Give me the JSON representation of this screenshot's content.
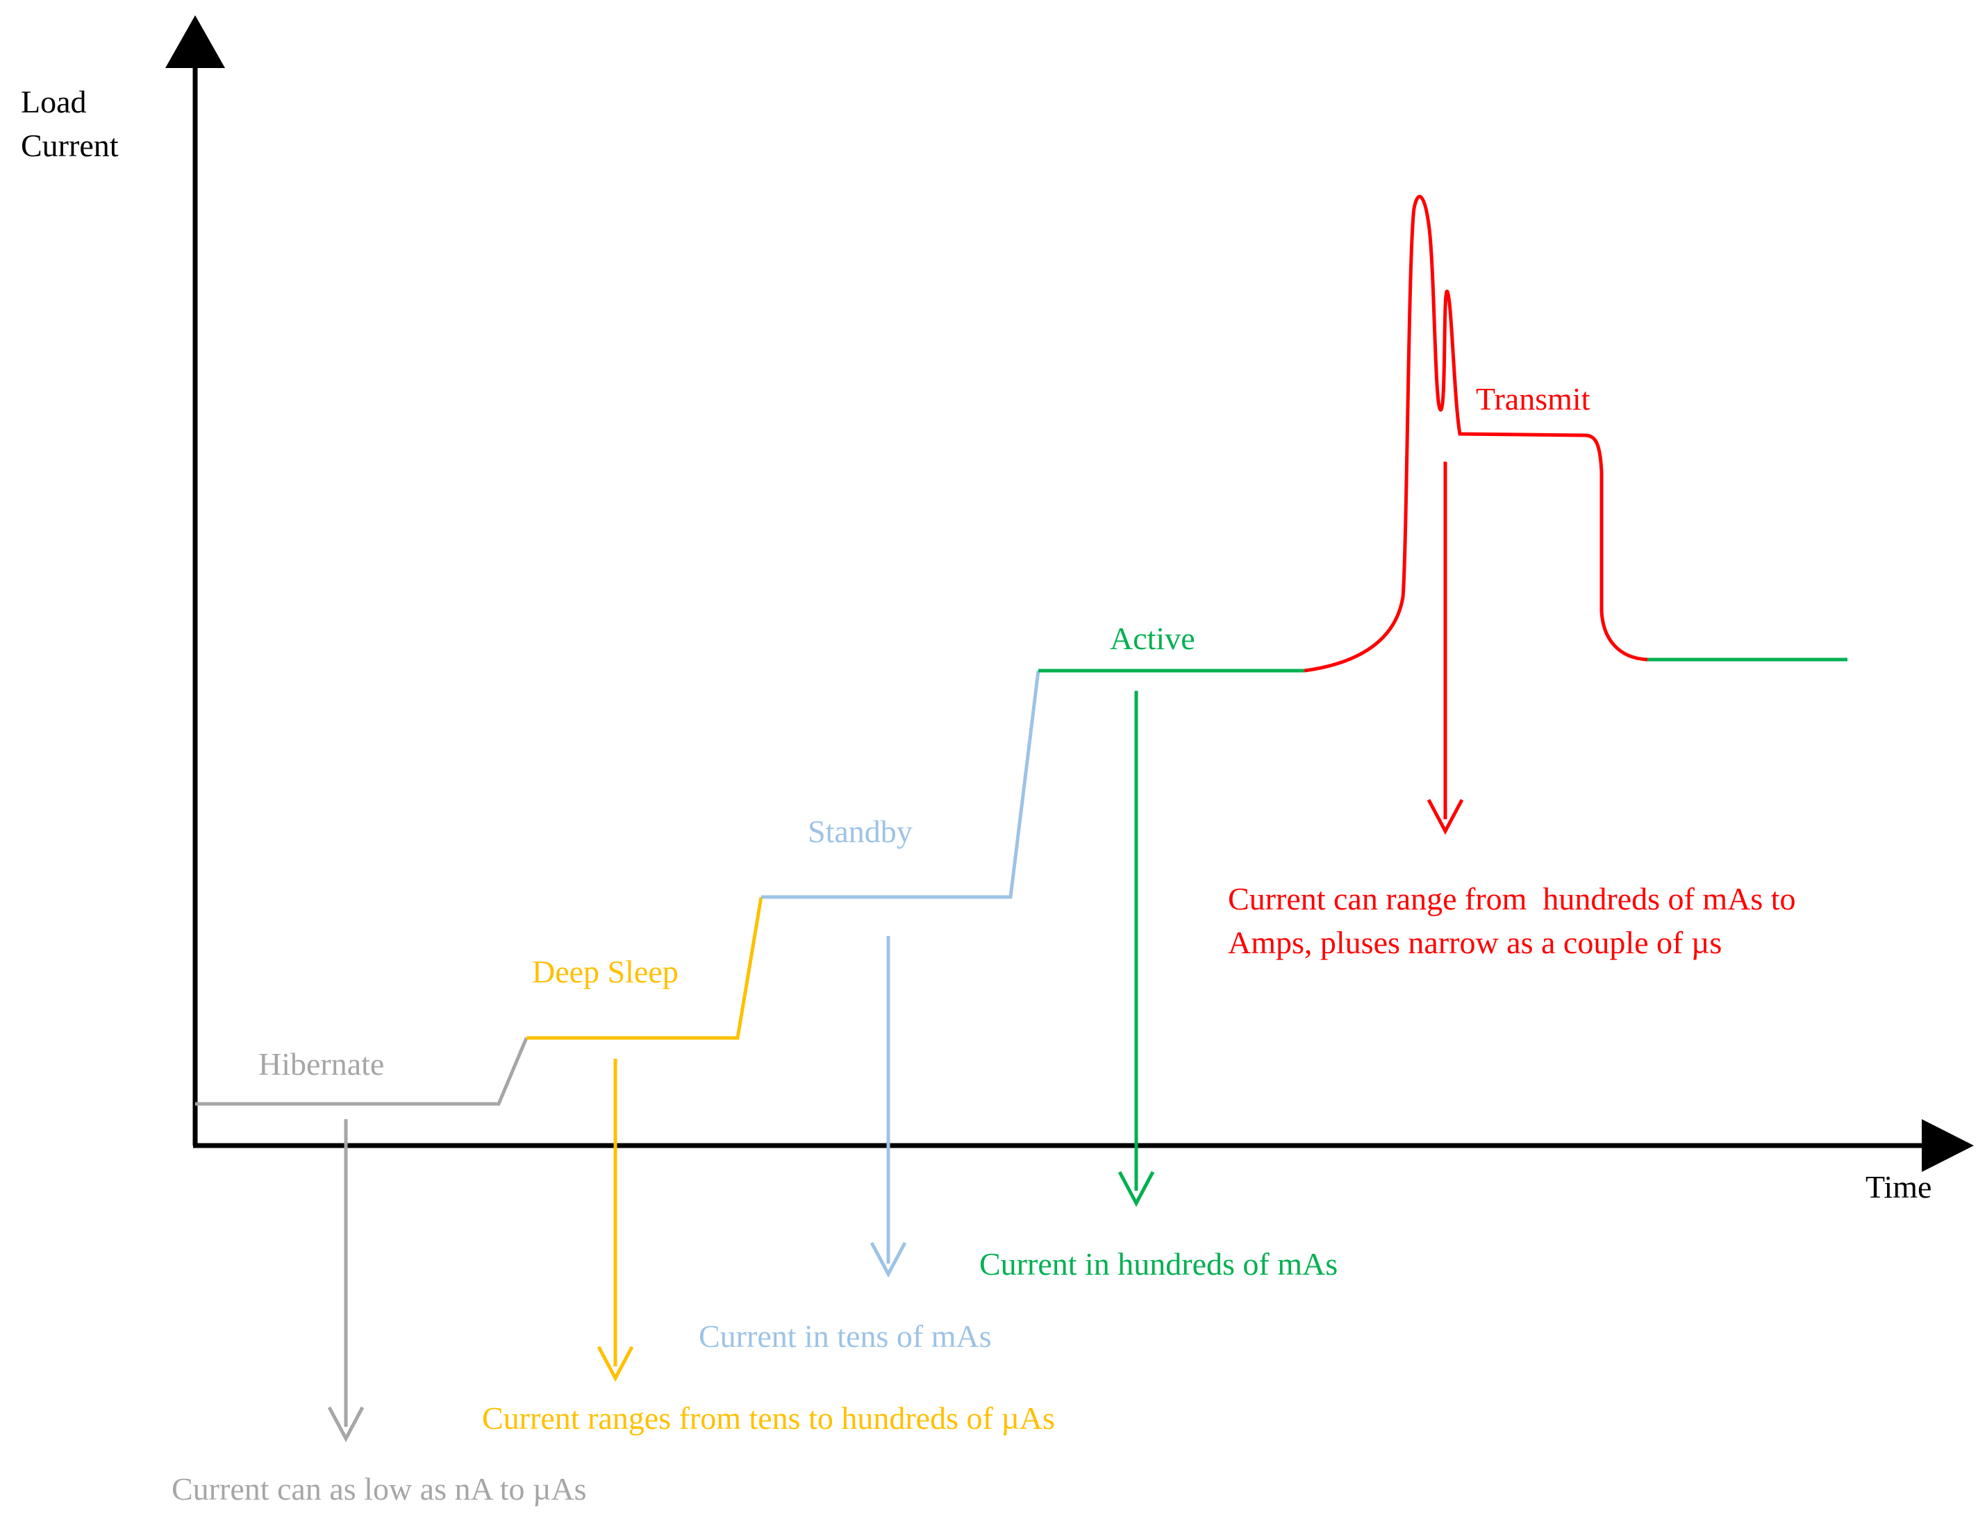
{
  "axes": {
    "y_label_line1": "Load",
    "y_label_line2": "Current",
    "x_label": "Time"
  },
  "states": {
    "hibernate": {
      "label": "Hibernate",
      "note": "Current can as low as nA to µAs",
      "color": "#a6a6a6"
    },
    "deep_sleep": {
      "label": "Deep Sleep",
      "note": "Current ranges from tens to hundreds of µAs",
      "color": "#ffc000"
    },
    "standby": {
      "label": "Standby",
      "note": "Current in tens of mAs",
      "color": "#9dc3e6"
    },
    "active": {
      "label": "Active",
      "note": "Current in hundreds of mAs",
      "color": "#00b050"
    },
    "transmit": {
      "label": "Transmit",
      "note_line1": "Current can range from  hundreds of mAs to",
      "note_line2": "Amps, pluses narrow as a couple of µs",
      "color": "#ff0000"
    }
  }
}
